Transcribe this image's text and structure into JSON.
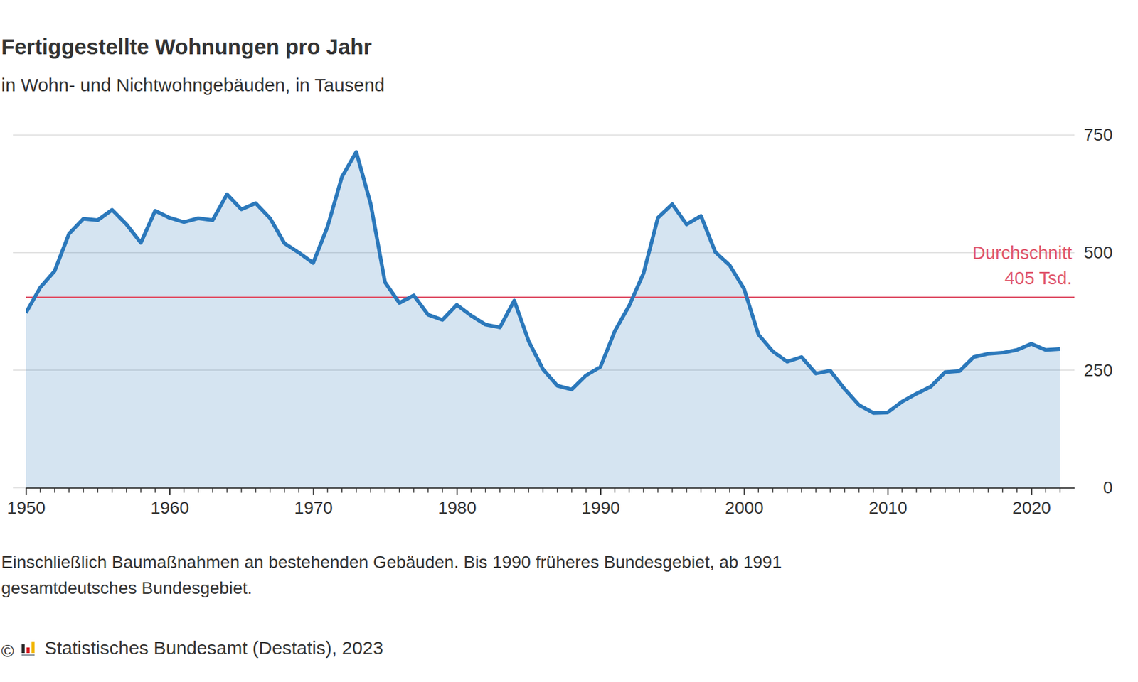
{
  "chart_data": {
    "type": "line",
    "title": "Fertiggestellte Wohnungen pro Jahr",
    "subtitle": "in Wohn- und Nichtwohngebäuden, in Tausend",
    "x": [
      1950,
      1951,
      1952,
      1953,
      1954,
      1955,
      1956,
      1957,
      1958,
      1959,
      1960,
      1961,
      1962,
      1963,
      1964,
      1965,
      1966,
      1967,
      1968,
      1969,
      1970,
      1971,
      1972,
      1973,
      1974,
      1975,
      1976,
      1977,
      1978,
      1979,
      1980,
      1981,
      1982,
      1983,
      1984,
      1985,
      1986,
      1987,
      1988,
      1989,
      1990,
      1991,
      1992,
      1993,
      1994,
      1995,
      1996,
      1997,
      1998,
      1999,
      2000,
      2001,
      2002,
      2003,
      2004,
      2005,
      2006,
      2007,
      2008,
      2009,
      2010,
      2011,
      2012,
      2013,
      2014,
      2015,
      2016,
      2017,
      2018,
      2019,
      2020,
      2021,
      2022
    ],
    "values": [
      372,
      426,
      461,
      540,
      572,
      569,
      591,
      560,
      521,
      589,
      574,
      565,
      573,
      569,
      624,
      592,
      605,
      573,
      520,
      500,
      478,
      555,
      661,
      714,
      604,
      437,
      393,
      409,
      368,
      357,
      389,
      366,
      347,
      341,
      398,
      312,
      252,
      217,
      209,
      239,
      257,
      333,
      387,
      456,
      574,
      603,
      560,
      578,
      501,
      473,
      423,
      326,
      290,
      268,
      278,
      243,
      249,
      210,
      176,
      159,
      160,
      183,
      200,
      215,
      246,
      248,
      278,
      285,
      287,
      293,
      306,
      293,
      295
    ],
    "color": "#2b78bb",
    "xlim": [
      1950,
      2023
    ],
    "xticks": [
      1950,
      1960,
      1970,
      1980,
      1990,
      2000,
      2010,
      2020
    ],
    "ylim": [
      0,
      750
    ],
    "yticks": [
      0,
      250,
      500,
      750
    ],
    "grid": true,
    "reference_line": {
      "value": 405,
      "label": "Durchschnitt",
      "value_label": "405 Tsd."
    },
    "note": [
      "Einschließlich Baumaßnahmen an bestehenden Gebäuden. Bis 1990 früheres Bundesgebiet, ab 1991",
      "gesamtdeutsches Bundesgebiet."
    ],
    "source": {
      "symbol": "©",
      "text": "Statistisches Bundesamt (Destatis), 2023"
    }
  }
}
